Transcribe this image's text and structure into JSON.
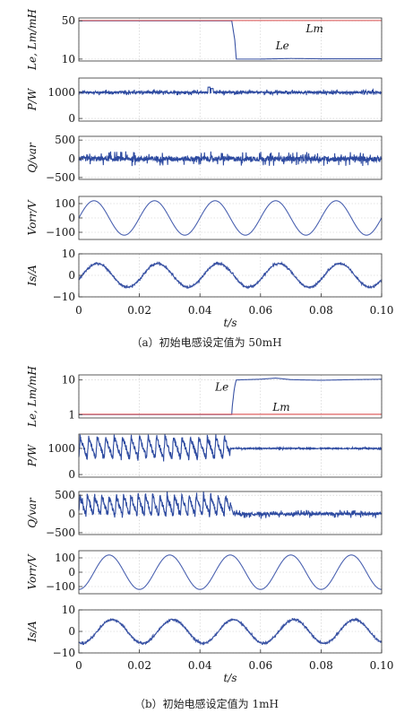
{
  "chart_data": [
    {
      "type": "line",
      "caption": "（a）初始电感设定值为 50mH",
      "xlabel": "t/s",
      "xlim": [
        0,
        0.1
      ],
      "xticks": [
        "0",
        "0.02",
        "0.04",
        "0.06",
        "0.08",
        "0.10"
      ],
      "panels": [
        {
          "ylabel": "Le, Lm/mH",
          "ylim": [
            8,
            53
          ],
          "yticks": [
            10,
            50
          ],
          "series": [
            {
              "name": "Le",
              "color": "#3a53a4",
              "x": [
                0,
                0.0505,
                0.0515,
                0.052,
                0.06,
                0.07,
                0.08,
                0.1
              ],
              "y": [
                50,
                50,
                30,
                10,
                10,
                10.6,
                10.3,
                10.3
              ]
            },
            {
              "name": "Lm",
              "color": "#d94c4c",
              "x": [
                0,
                0.1
              ],
              "y": [
                50.3,
                50.3
              ]
            }
          ],
          "annotations": [
            {
              "text": "Le",
              "x": 0.065,
              "y": 20
            },
            {
              "text": "Lm",
              "x": 0.075,
              "y": 38
            }
          ]
        },
        {
          "ylabel": "P/W",
          "ylim": [
            -100,
            1550
          ],
          "yticks": [
            0,
            1000
          ],
          "series": [
            {
              "name": "P",
              "color": "#2d4aa0",
              "x": [
                0,
                0.1
              ],
              "y": [
                1000,
                1000
              ],
              "noise": 60,
              "spikes": [
                [
                  0.043,
                  1200
                ],
                [
                  0.044,
                  1150
                ]
              ]
            }
          ]
        },
        {
          "ylabel": "Q/var",
          "ylim": [
            -550,
            600
          ],
          "yticks": [
            -500,
            0,
            500
          ],
          "series": [
            {
              "name": "Q",
              "color": "#2d4aa0",
              "x": [
                0,
                0.1
              ],
              "y": [
                0,
                0
              ],
              "noise": 110
            }
          ]
        },
        {
          "ylabel": "Vorr/V",
          "ylim": [
            -150,
            150
          ],
          "yticks": [
            -100,
            0,
            100
          ],
          "series": [
            {
              "name": "Vorr",
              "color": "#4a61b0",
              "sine": {
                "amp": 120,
                "freq": 50,
                "phase": 0
              }
            }
          ]
        },
        {
          "ylabel": "Is/A",
          "ylim": [
            -10,
            10
          ],
          "yticks": [
            -10,
            0,
            10
          ],
          "series": [
            {
              "name": "Is",
              "color": "#3a53a4",
              "sine": {
                "amp": 5.5,
                "freq": 50,
                "phase": -0.35
              },
              "noise": 0.5
            }
          ]
        }
      ]
    },
    {
      "type": "line",
      "caption": "（b）初始电感设定值为 1mH",
      "xlabel": "t/s",
      "xlim": [
        0,
        0.1
      ],
      "xticks": [
        "0",
        "0.02",
        "0.04",
        "0.06",
        "0.08",
        "0.10"
      ],
      "panels": [
        {
          "ylabel": "Le, Lm/mH",
          "yscale": "log",
          "ylim": [
            0.8,
            14
          ],
          "yticks": [
            1,
            10
          ],
          "series": [
            {
              "name": "Le",
              "color": "#3a53a4",
              "x": [
                0,
                0.0505,
                0.051,
                0.052,
                0.06,
                0.065,
                0.07,
                0.08,
                0.09,
                0.1
              ],
              "y": [
                1,
                1,
                3,
                10,
                10.5,
                11.3,
                10.2,
                9.8,
                10.2,
                10.5
              ]
            },
            {
              "name": "Lm",
              "color": "#d94c4c",
              "x": [
                0,
                0.1
              ],
              "y": [
                1.02,
                1.02
              ]
            }
          ],
          "annotations": [
            {
              "text": "Le",
              "x": 0.045,
              "y": 5
            },
            {
              "text": "Lm",
              "x": 0.064,
              "y": 1.3
            }
          ]
        },
        {
          "ylabel": "P/W",
          "ylim": [
            -100,
            1550
          ],
          "yticks": [
            0,
            1000
          ],
          "series": [
            {
              "name": "P",
              "color": "#2d4aa0",
              "x": [
                0,
                0.05,
                0.0505,
                0.1
              ],
              "y": [
                1000,
                1000,
                1000,
                1000
              ],
              "oscillation": {
                "until": 0.05,
                "low": 600,
                "high": 1450,
                "period": 0.0028
              },
              "noise": 30
            }
          ]
        },
        {
          "ylabel": "Q/var",
          "ylim": [
            -550,
            600
          ],
          "yticks": [
            -500,
            0,
            500
          ],
          "series": [
            {
              "name": "Q",
              "color": "#2d4aa0",
              "x": [
                0,
                0.05,
                0.051,
                0.1
              ],
              "y": [
                300,
                300,
                0,
                0
              ],
              "oscillation": {
                "until": 0.05,
                "low": -50,
                "high": 500,
                "period": 0.0024
              },
              "noise": 60
            }
          ]
        },
        {
          "ylabel": "Vorr/V",
          "ylim": [
            -150,
            150
          ],
          "yticks": [
            -100,
            0,
            100
          ],
          "series": [
            {
              "name": "Vorr",
              "color": "#4a61b0",
              "sine": {
                "amp": 120,
                "freq": 50,
                "phase": -1.5708
              }
            }
          ]
        },
        {
          "ylabel": "Is/A",
          "ylim": [
            -10,
            10
          ],
          "yticks": [
            -10,
            0,
            10
          ],
          "series": [
            {
              "name": "Is",
              "color": "#3a53a4",
              "sine": {
                "amp": 5.5,
                "freq": 50,
                "phase": -1.9
              },
              "noise": 0.5
            }
          ]
        }
      ]
    }
  ]
}
